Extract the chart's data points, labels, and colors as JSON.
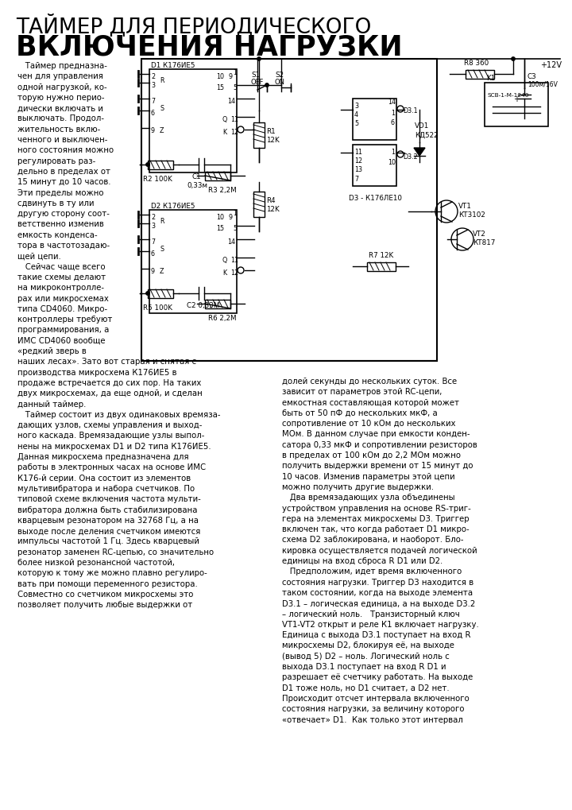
{
  "title1": "ТАЙМЕР ДЛЯ ПЕРИОДИЧЕСКОГО",
  "title2": "ВКЛЮЧЕНИЯ НАГРУЗКИ",
  "bg": "#ffffff",
  "left_col_lines": [
    "   Таймер предназна-",
    "чен для управления",
    "одной нагрузкой, ко-",
    "торую нужно перио-",
    "дически включать и",
    "выключать. Продол-",
    "жительность вклю-",
    "ченного и выключен-",
    "ного состояния можно",
    "регулировать раз-",
    "дельно в пределах от",
    "15 минут до 10 часов.",
    "Эти пределы можно",
    "сдвинуть в ту или",
    "другую сторону соот-",
    "ветственно изменив",
    "емкость конденса-",
    "тора в частотозадаю-",
    "щей цепи.",
    "   Сейчас чаще всего",
    "такие схемы делают",
    "на микроконтролле-",
    "рах или микросхемах",
    "типа CD4060. Микро-",
    "контроллеры требуют",
    "программирования, а",
    "ИМС CD4060 вообще",
    "«редкий зверь в",
    "наших лесах». Зато вот старая и снятая с",
    "производства микросхема К176ИЕ5 в",
    "продаже встречается до сих пор. На таких",
    "двух микросхемах, да еще одной, и сделан",
    "данный таймер.",
    "   Таймер состоит из двух одинаковых времяза-",
    "дающих узлов, схемы управления и выход-",
    "ного каскада. Времязадающие узлы выпол-",
    "нены на микросхемах D1 и D2 типа К176ИЕ5.",
    "Данная микросхема предназначена для",
    "работы в электронных часах на основе ИМС",
    "К176-й серии. Она состоит из элементов",
    "мультивибратора и набора счетчиков. По",
    "типовой схеме включения частота мульти-",
    "вибратора должна быть стабилизирована",
    "кварцевым резонатором на 32768 Гц, а на",
    "выходе после деления счетчиком имеются",
    "импульсы частотой 1 Гц. Здесь кварцевый",
    "резонатор заменен RC-цепью, со значительно",
    "более низкой резонансной частотой,",
    "которую к тому же можно плавно регулиро-",
    "вать при помощи переменного резистора.",
    "Совместно со счетчиком микросхемы это",
    "позволяет получить любые выдержки от"
  ],
  "right_col_lines": [
    "долей секунды до нескольких суток. Все",
    "зависит от параметров этой RC-цепи,",
    "емкостная составляющая которой может",
    "быть от 50 пФ до нескольких мкФ, а",
    "сопротивление от 10 кОм до нескольких",
    "МОм. В данном случае при емкости конден-",
    "сатора 0,33 мкФ и сопротивлении резисторов",
    "в пределах от 100 кОм до 2,2 МОм можно",
    "получить выдержки времени от 15 минут до",
    "10 часов. Изменив параметры этой цепи",
    "можно получить другие выдержки.",
    "   Два времязадающих узла объединены",
    "устройством управления на основе RS-триг-",
    "гера на элементах микросхемы D3. Триггер",
    "включен так, что когда работает D1 микро-",
    "схема D2 заблокирована, и наоборот. Бло-",
    "кировка осуществляется подачей логической",
    "единицы на вход сброса R D1 или D2.",
    "   Предположим, идет время включенного",
    "состояния нагрузки. Триггер D3 находится в",
    "таком состоянии, когда на выходе элемента",
    "D3.1 – логическая единица, а на выходе D3.2",
    "– логический ноль.   Транзисторный ключ",
    "VT1-VT2 открыт и реле К1 включает нагрузку.",
    "Единица с выхода D3.1 поступает на вход R",
    "микросхемы D2, блокируя её, на выходе",
    "(вывод 5) D2 – ноль. Логический ноль с",
    "выхода D3.1 поступает на вход R D1 и",
    "разрешает её счетчику работать. На выходе",
    "D1 тоже ноль, но D1 считает, а D2 нет.",
    "Происходит отсчет интервала включенного",
    "состояния нагрузки, за величину которого",
    "«отвечает» D1.  Как только этот интервал"
  ]
}
